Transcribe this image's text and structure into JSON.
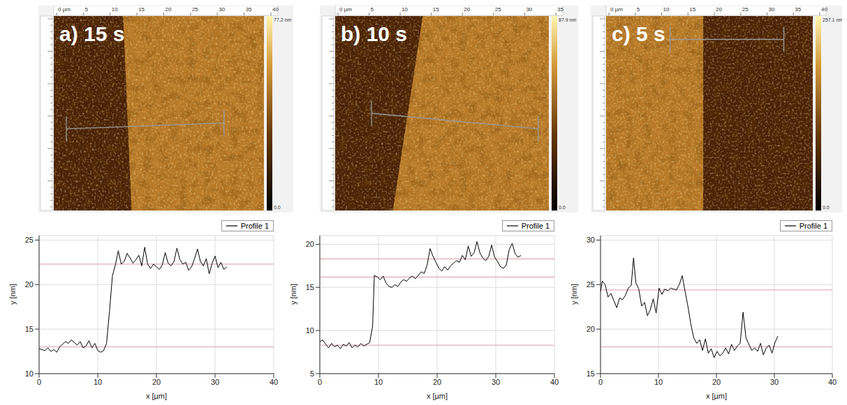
{
  "images": [
    {
      "label": "a) 15 s",
      "colorbar_max": "77.2 nm",
      "colorbar_min": "0.0",
      "ruler": [
        "0 µm",
        "5",
        "10",
        "15",
        "20",
        "25",
        "30",
        "35",
        "40"
      ]
    },
    {
      "label": "b) 10 s",
      "colorbar_max": "87.9 nm",
      "colorbar_min": "0.0",
      "ruler": [
        "0 µm",
        "5",
        "10",
        "15",
        "20",
        "25",
        "30",
        "35"
      ]
    },
    {
      "label": "c) 5 s",
      "colorbar_max": "257.1 nm",
      "colorbar_min": "0.0",
      "ruler": [
        "0 µm",
        "5",
        "10",
        "15",
        "20",
        "25",
        "30",
        "35",
        "40"
      ]
    }
  ],
  "chart_data": [
    {
      "type": "line",
      "xlabel": "x [µm]",
      "ylabel": "y [nm]",
      "grid": true,
      "legend": "top right",
      "xlim": [
        0,
        40
      ],
      "xticks": [
        0,
        10,
        20,
        30,
        40
      ],
      "ylim": [
        10,
        25.5
      ],
      "yticks": [
        10,
        15,
        20,
        25
      ],
      "reference_lines": [
        22.3,
        13.0
      ],
      "x": [
        0,
        1,
        1.5,
        2,
        2.5,
        3,
        3.5,
        4,
        4.5,
        5,
        5.5,
        6,
        6.5,
        7,
        7.5,
        8,
        8.5,
        9,
        9.5,
        10,
        10.5,
        11,
        11.5,
        12,
        12.5,
        13,
        13.5,
        14,
        14.5,
        15,
        15.5,
        16,
        16.5,
        17,
        17.5,
        18,
        18.5,
        19,
        19.5,
        20,
        20.5,
        21,
        21.5,
        22,
        22.5,
        23,
        23.5,
        24,
        24.5,
        25,
        25.5,
        26,
        26.5,
        27,
        27.5,
        28,
        28.5,
        29,
        29.5,
        30,
        30.5,
        31,
        31.5,
        32
      ],
      "series": [
        {
          "name": "Profile 1",
          "color": "#000000",
          "values": [
            12.8,
            12.6,
            12.9,
            12.5,
            12.7,
            12.4,
            13.0,
            13.3,
            13.6,
            13.4,
            13.8,
            13.5,
            13.2,
            13.6,
            12.9,
            13.1,
            13.7,
            12.9,
            13.4,
            12.6,
            12.4,
            12.6,
            13.4,
            17.0,
            21.0,
            22.2,
            23.8,
            22.3,
            22.6,
            23.5,
            23.0,
            22.4,
            22.8,
            23.3,
            22.1,
            24.2,
            22.3,
            21.8,
            22.3,
            22.0,
            21.7,
            22.2,
            23.6,
            22.4,
            22.1,
            22.6,
            24.1,
            22.8,
            22.3,
            22.5,
            21.6,
            22.0,
            22.9,
            24.0,
            22.6,
            22.1,
            22.9,
            21.2,
            22.4,
            23.2,
            21.9,
            22.5,
            21.7,
            22.0
          ]
        }
      ]
    },
    {
      "type": "line",
      "xlabel": "x [µm]",
      "ylabel": "y [nm]",
      "grid": true,
      "legend": "top right",
      "xlim": [
        0,
        40
      ],
      "xticks": [
        0,
        10,
        20,
        30,
        40
      ],
      "ylim": [
        5,
        21
      ],
      "yticks": [
        5,
        10,
        15,
        20
      ],
      "reference_lines": [
        18.3,
        16.2,
        8.3
      ],
      "x": [
        0,
        0.5,
        1,
        1.5,
        2,
        2.5,
        3,
        3.5,
        4,
        4.5,
        5,
        5.5,
        6,
        6.5,
        7,
        7.5,
        8,
        8.5,
        9,
        9.3,
        9.8,
        10.3,
        10.8,
        11.3,
        11.8,
        12.3,
        12.8,
        13.3,
        13.8,
        14.3,
        14.8,
        15.3,
        15.8,
        16.3,
        16.8,
        17.3,
        17.8,
        18.3,
        18.8,
        19.3,
        19.8,
        20.3,
        20.8,
        21.3,
        21.8,
        22.3,
        22.8,
        23.3,
        23.8,
        24.3,
        24.8,
        25.3,
        25.8,
        26.3,
        26.8,
        27.3,
        27.8,
        28.3,
        28.8,
        29.3,
        29.8,
        30.3,
        30.8,
        31.3,
        31.8,
        32.3,
        32.8,
        33.3,
        33.8,
        34.3
      ],
      "series": [
        {
          "name": "Profile 1",
          "color": "#000000",
          "values": [
            8.7,
            8.9,
            8.4,
            8.0,
            8.5,
            8.1,
            8.3,
            7.9,
            8.4,
            8.2,
            8.6,
            8.0,
            8.3,
            8.1,
            8.5,
            8.2,
            8.4,
            8.6,
            10.5,
            16.4,
            16.2,
            15.9,
            16.3,
            15.5,
            15.1,
            15.0,
            15.3,
            15.1,
            15.6,
            15.9,
            15.7,
            16.1,
            16.3,
            16.0,
            16.4,
            16.8,
            16.6,
            17.6,
            19.5,
            18.6,
            17.9,
            17.2,
            16.9,
            17.4,
            17.0,
            17.5,
            17.8,
            18.1,
            17.9,
            18.7,
            18.2,
            19.8,
            18.6,
            19.0,
            20.3,
            19.0,
            18.4,
            18.1,
            18.6,
            19.9,
            18.5,
            18.0,
            17.4,
            17.2,
            17.6,
            19.4,
            20.1,
            18.9,
            18.5,
            18.7
          ]
        }
      ]
    },
    {
      "type": "line",
      "xlabel": "x [µm]",
      "ylabel": "y [nm]",
      "grid": true,
      "legend": "top right",
      "xlim": [
        0,
        40
      ],
      "xticks": [
        0,
        10,
        20,
        30,
        40
      ],
      "ylim": [
        15,
        30.5
      ],
      "yticks": [
        15,
        20,
        25,
        30
      ],
      "reference_lines": [
        24.4,
        18.0
      ],
      "x": [
        0,
        0.3,
        0.8,
        1.3,
        1.8,
        2.3,
        2.8,
        3.3,
        3.8,
        4.3,
        4.8,
        5.3,
        5.7,
        6.1,
        6.6,
        7.1,
        7.6,
        8.1,
        8.6,
        9.1,
        9.6,
        10.1,
        10.6,
        11.1,
        11.6,
        12.1,
        12.6,
        13.1,
        13.6,
        14.1,
        14.6,
        15.1,
        15.6,
        16.1,
        16.6,
        17.1,
        17.6,
        18.1,
        18.6,
        19.1,
        19.6,
        20.1,
        20.6,
        21.1,
        21.6,
        22.1,
        22.6,
        23.1,
        23.6,
        24.1,
        24.6,
        25.1,
        25.6,
        26.1,
        26.6,
        27.1,
        27.6,
        28.1,
        28.6,
        29.1,
        29.6,
        30.1,
        30.6
      ],
      "series": [
        {
          "name": "Profile 1",
          "color": "#000000",
          "values": [
            24.2,
            25.4,
            25.0,
            23.6,
            24.0,
            23.2,
            22.4,
            23.5,
            23.3,
            23.8,
            24.6,
            24.9,
            28.0,
            25.2,
            24.5,
            22.6,
            23.0,
            21.5,
            22.2,
            23.4,
            21.8,
            24.6,
            23.9,
            24.5,
            24.3,
            24.6,
            24.5,
            24.4,
            25.0,
            26.0,
            24.2,
            22.5,
            20.5,
            19.0,
            18.4,
            18.8,
            17.6,
            18.9,
            17.3,
            17.8,
            16.8,
            17.5,
            17.0,
            17.3,
            17.9,
            17.2,
            18.3,
            17.6,
            18.1,
            18.4,
            21.9,
            19.0,
            18.3,
            17.6,
            17.9,
            17.5,
            18.4,
            17.1,
            17.9,
            18.2,
            17.3,
            18.5,
            19.2
          ]
        }
      ]
    }
  ]
}
